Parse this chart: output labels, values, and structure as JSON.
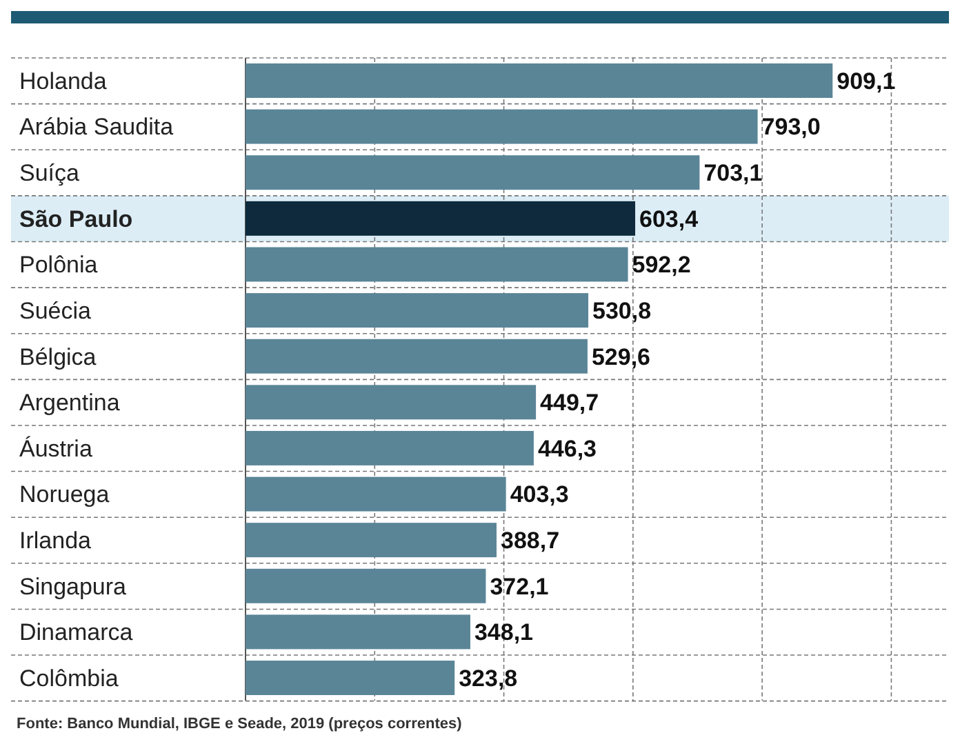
{
  "chart_data": {
    "type": "bar",
    "orientation": "horizontal",
    "categories": [
      "Holanda",
      "Arábia Saudita",
      "Suíça",
      "São Paulo",
      "Polônia",
      "Suécia",
      "Bélgica",
      "Argentina",
      "Áustria",
      "Noruega",
      "Irlanda",
      "Singapura",
      "Dinamarca",
      "Colômbia"
    ],
    "values": [
      909.1,
      793.0,
      703.1,
      603.4,
      592.2,
      530.8,
      529.6,
      449.7,
      446.3,
      403.3,
      388.7,
      372.1,
      348.1,
      323.8
    ],
    "value_labels": [
      "909,1",
      "793,0",
      "703,1",
      "603,4",
      "592,2",
      "530,8",
      "529,6",
      "449,7",
      "446,3",
      "403,3",
      "388,7",
      "372,1",
      "348,1",
      "323,8"
    ],
    "colors": [
      "#5a8597",
      "#5a8597",
      "#5a8597",
      "#0e2a3c",
      "#5a8597",
      "#5a8597",
      "#5a8597",
      "#5a8597",
      "#5a8597",
      "#5a8597",
      "#5a8597",
      "#5a8597",
      "#5a8597",
      "#5a8597"
    ],
    "xlim": [
      0,
      1085
    ],
    "xticks": [
      {
        "value": 200,
        "label": null
      },
      {
        "value": 400,
        "label": null
      },
      {
        "value": 600,
        "label": null
      },
      {
        "value": 800,
        "label": null
      },
      {
        "value": 1000,
        "label": null
      }
    ],
    "tick_labels": "y",
    "grid": true,
    "bands": [
      {
        "axis": "y",
        "from": "São Paulo",
        "to": "São Paulo",
        "color": "#dcedf6"
      }
    ],
    "annotations": [
      "Fonte: Banco Mundial, IBGE e Seade, 2019 (preços correntes)"
    ]
  }
}
